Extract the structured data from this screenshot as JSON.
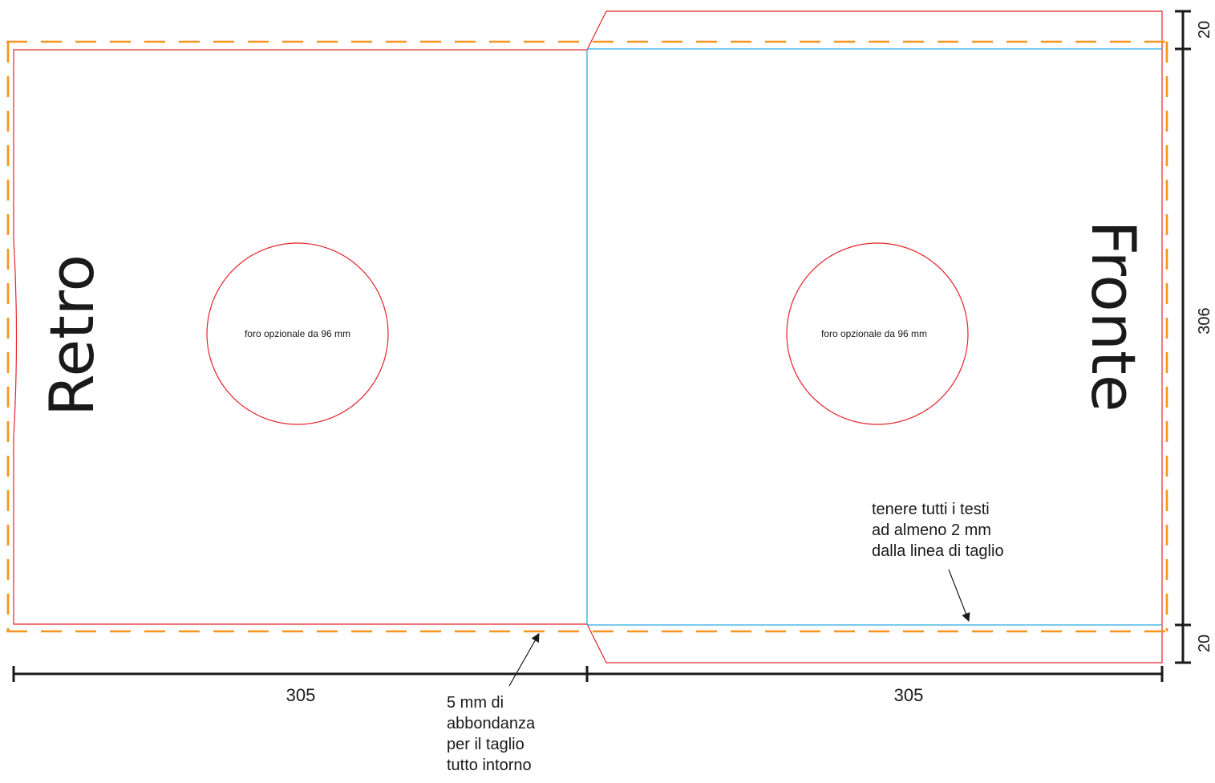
{
  "panels": {
    "back_label": "Retro",
    "front_label": "Fronte"
  },
  "holes": {
    "back_label": "foro opzionale da 96 mm",
    "front_label": "foro opzionale da 96 mm"
  },
  "dimensions": {
    "width_back": "305",
    "width_front": "305",
    "height_total": "306",
    "flap_top": "20",
    "flap_bottom": "20"
  },
  "notes": {
    "safe_margin_lines": [
      "tenere tutti i testi",
      "ad almeno 2 mm",
      "dalla linea di taglio"
    ],
    "bleed_lines": [
      "5 mm di",
      "abbondanza",
      "per il taglio",
      "tutto intorno"
    ]
  },
  "colors": {
    "cut_line": "#e3242b",
    "fold_line": "#29abe2",
    "bleed_line": "#f7931e",
    "dimension_line": "#1a1a1a",
    "text": "#1a1a1a"
  }
}
